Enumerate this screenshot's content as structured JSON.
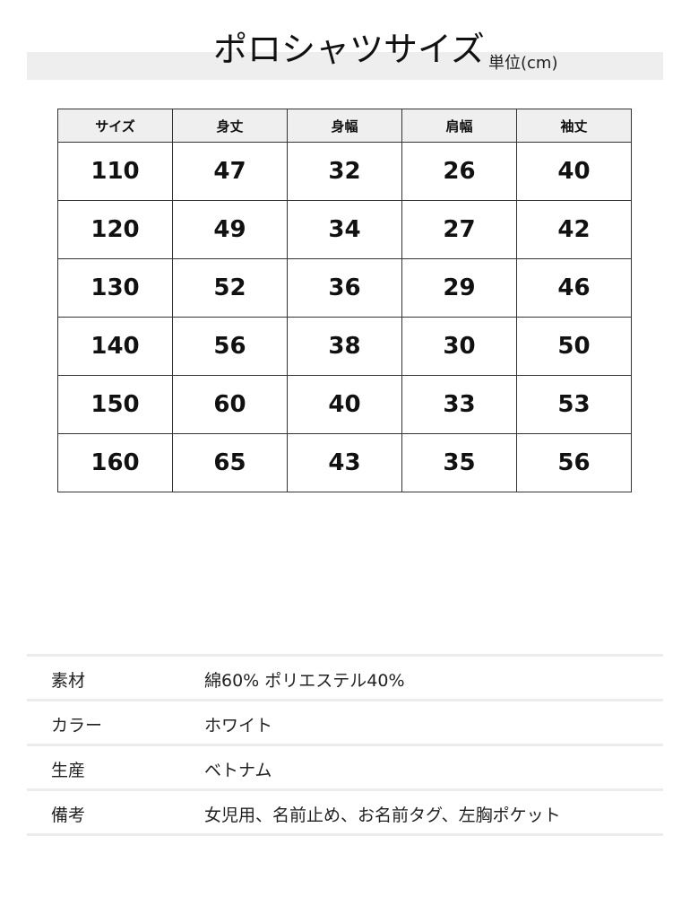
{
  "header": {
    "title": "ポロシャツサイズ",
    "unit": "単位(cm)"
  },
  "size_table": {
    "columns": [
      "サイズ",
      "身丈",
      "身幅",
      "肩幅",
      "袖丈"
    ],
    "rows": [
      [
        "110",
        "47",
        "32",
        "26",
        "40"
      ],
      [
        "120",
        "49",
        "34",
        "27",
        "42"
      ],
      [
        "130",
        "52",
        "36",
        "29",
        "46"
      ],
      [
        "140",
        "56",
        "38",
        "30",
        "50"
      ],
      [
        "150",
        "60",
        "40",
        "33",
        "53"
      ],
      [
        "160",
        "65",
        "43",
        "35",
        "56"
      ]
    ]
  },
  "specs": [
    {
      "label": "素材",
      "value": "綿60% ポリエステル40%"
    },
    {
      "label": "カラー",
      "value": "ホワイト"
    },
    {
      "label": "生産",
      "value": "ベトナム"
    },
    {
      "label": "備考",
      "value": "女児用、名前止め、お名前タグ、左胸ポケット"
    }
  ]
}
